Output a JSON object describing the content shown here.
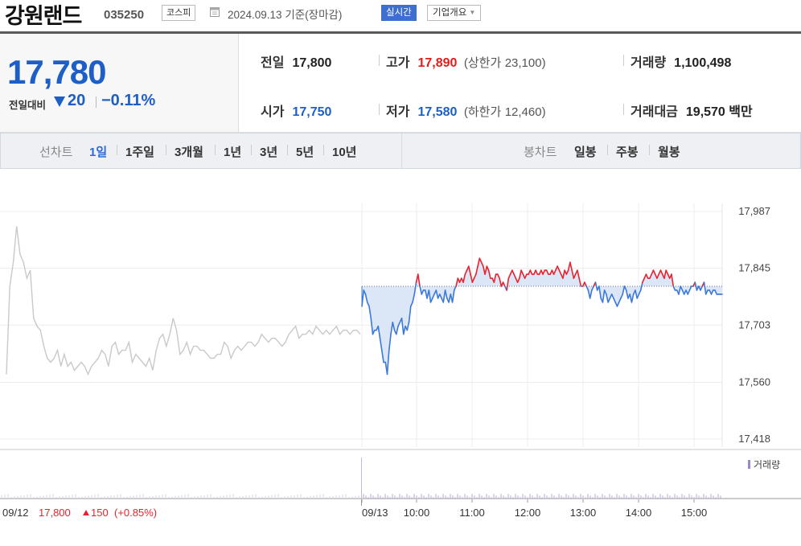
{
  "header": {
    "name": "강원랜드",
    "code": "035250",
    "market": "코스피",
    "date": "2024.09.13 기준(장마감)",
    "realtime_button": "실시간",
    "company_button": "기업개요"
  },
  "price": {
    "current": "17,780",
    "compare_label": "전일대비",
    "change": "20",
    "change_pct": "−0.11%"
  },
  "stats": {
    "prev_close_label": "전일",
    "prev_close": "17,800",
    "high_label": "고가",
    "high": "17,890",
    "upper_limit_label": "(상한가",
    "upper_limit": "23,100)",
    "volume_label": "거래량",
    "volume": "1,100,498",
    "open_label": "시가",
    "open": "17,750",
    "low_label": "저가",
    "low": "17,580",
    "lower_limit_label": "(하한가",
    "lower_limit": "12,460)",
    "amount_label": "거래대금",
    "amount": "19,570",
    "amount_unit": "백만"
  },
  "periods": {
    "line_label": "선차트",
    "items": [
      "1일",
      "1주일",
      "3개월",
      "1년",
      "3년",
      "5년",
      "10년"
    ],
    "selected": "1일",
    "candle_label": "봉차트",
    "candle_items": [
      "일봉",
      "주봉",
      "월봉"
    ]
  },
  "chart_data": {
    "type": "line",
    "ylim": [
      17418,
      17987
    ],
    "yticks": [
      "17,987",
      "17,845",
      "17,703",
      "17,560",
      "17,418"
    ],
    "xticks": [
      "09/13",
      "10:00",
      "11:00",
      "12:00",
      "13:00",
      "14:00",
      "15:00"
    ],
    "baseline": 17800,
    "prev_day": {
      "date": "09/12",
      "close": "17,800",
      "change": "150",
      "change_pct": "(+0.85%)"
    },
    "volume_legend": "거래량",
    "colors": {
      "up": "#e8232f",
      "down": "#3b78d8",
      "prev": "#c9c9c9",
      "fill": "#dbe6f7"
    },
    "series": [
      {
        "values": [
          17580,
          17800,
          17860,
          17950,
          17880,
          17860,
          17820,
          17840,
          17720,
          17700,
          17690,
          17650,
          17620,
          17610,
          17620,
          17640,
          17600,
          17630,
          17600,
          17610,
          17590,
          17600,
          17610,
          17600,
          17580,
          17600,
          17610,
          17620,
          17640,
          17630,
          17600,
          17650,
          17660,
          17630,
          17640,
          17640,
          17660,
          17610,
          17630,
          17620,
          17610,
          17600,
          17620,
          17590,
          17640,
          17670,
          17680,
          17650,
          17680,
          17720,
          17690,
          17630,
          17640,
          17660,
          17630,
          17650,
          17650,
          17640,
          17640,
          17630,
          17620,
          17620,
          17630,
          17630,
          17660,
          17650,
          17620,
          17640,
          17650,
          17640,
          17650,
          17660,
          17660,
          17650,
          17660,
          17680,
          17670,
          17660,
          17670,
          17670,
          17660,
          17650,
          17660,
          17680,
          17690,
          17700,
          17670,
          17680,
          17680,
          17690,
          17680,
          17700,
          17690,
          17680,
          17690,
          17680,
          17690,
          17700,
          17680,
          17690,
          17690,
          17680,
          17690,
          17690,
          17680
        ]
      },
      {
        "name": "09/13",
        "values": [
          17750,
          17790,
          17780,
          17760,
          17750,
          17720,
          17680,
          17690,
          17690,
          17700,
          17670,
          17640,
          17610,
          17610,
          17580,
          17640,
          17680,
          17710,
          17690,
          17680,
          17700,
          17710,
          17720,
          17680,
          17700,
          17690,
          17710,
          17750,
          17760,
          17780,
          17810,
          17830,
          17800,
          17780,
          17790,
          17790,
          17770,
          17790,
          17760,
          17770,
          17780,
          17790,
          17770,
          17780,
          17770,
          17760,
          17790,
          17770,
          17760,
          17780,
          17760,
          17790,
          17800,
          17820,
          17810,
          17820,
          17810,
          17830,
          17840,
          17850,
          17830,
          17810,
          17820,
          17830,
          17850,
          17870,
          17860,
          17850,
          17830,
          17850,
          17840,
          17820,
          17820,
          17810,
          17830,
          17830,
          17820,
          17800,
          17810,
          17800,
          17790,
          17820,
          17830,
          17840,
          17830,
          17820,
          17810,
          17820,
          17840,
          17830,
          17820,
          17830,
          17830,
          17840,
          17830,
          17830,
          17840,
          17830,
          17830,
          17840,
          17830,
          17840,
          17840,
          17830,
          17830,
          17840,
          17830,
          17840,
          17850,
          17840,
          17830,
          17820,
          17840,
          17830,
          17840,
          17860,
          17840,
          17820,
          17830,
          17840,
          17820,
          17800,
          17800,
          17810,
          17800,
          17790,
          17770,
          17790,
          17800,
          17810,
          17790,
          17800,
          17770,
          17760,
          17790,
          17780,
          17760,
          17770,
          17780,
          17770,
          17760,
          17750,
          17760,
          17770,
          17780,
          17800,
          17790,
          17770,
          17780,
          17760,
          17780,
          17790,
          17770,
          17780,
          17790,
          17810,
          17820,
          17830,
          17820,
          17820,
          17830,
          17840,
          17830,
          17820,
          17830,
          17840,
          17830,
          17820,
          17840,
          17830,
          17820,
          17830,
          17800,
          17790,
          17790,
          17780,
          17800,
          17790,
          17780,
          17790,
          17780,
          17790,
          17800,
          17800,
          17810,
          17790,
          17800,
          17790,
          17800,
          17810,
          17780,
          17790,
          17790,
          17780,
          17790,
          17790,
          17780,
          17780,
          17780,
          17780
        ]
      }
    ]
  }
}
